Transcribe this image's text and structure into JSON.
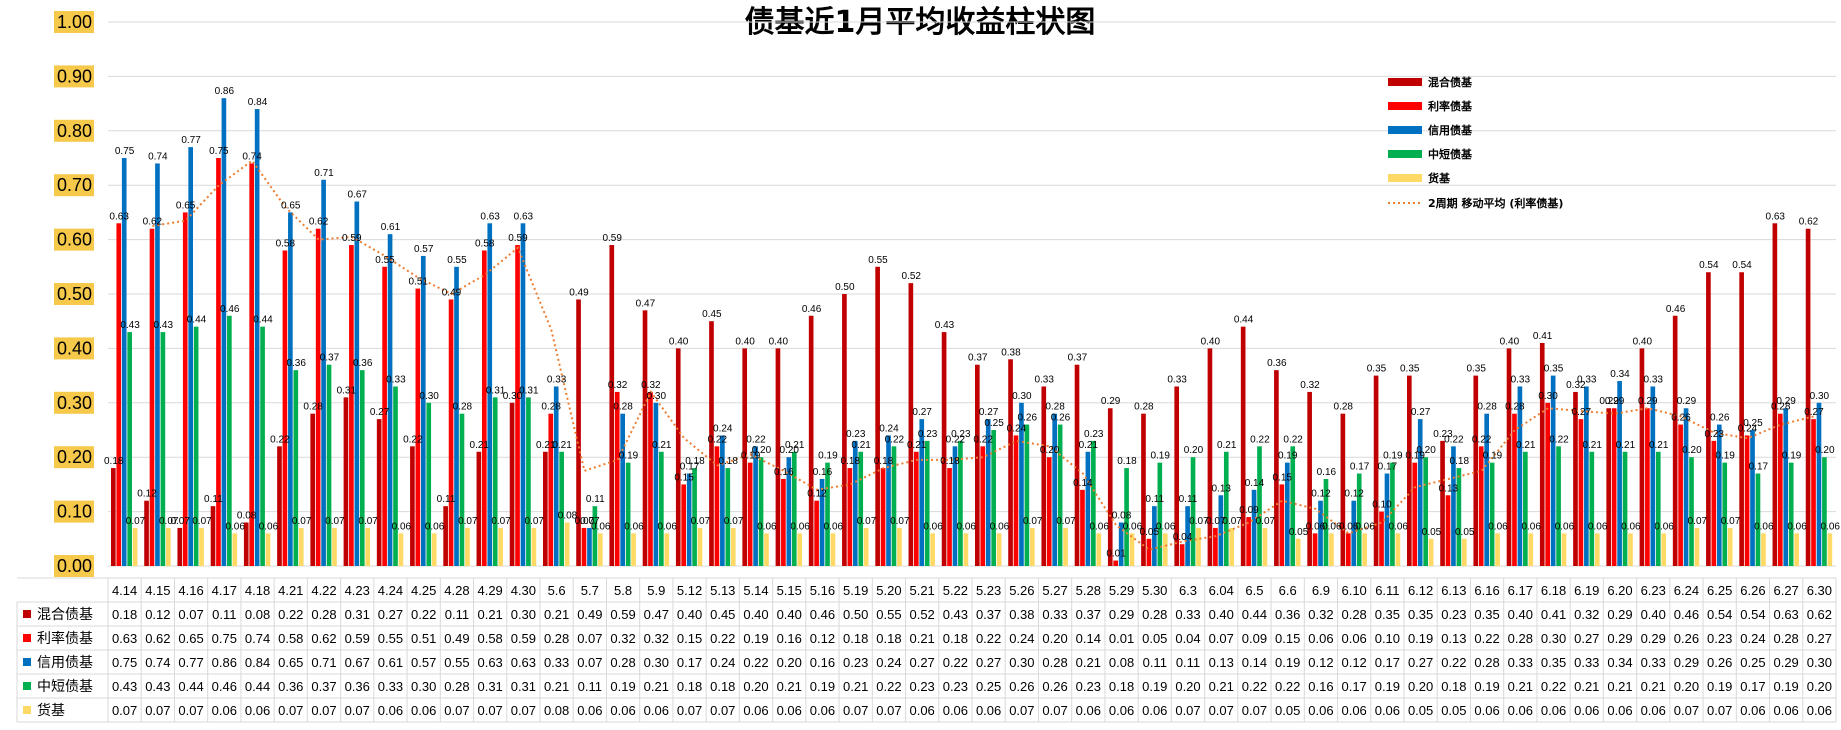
{
  "chart_data": {
    "type": "bar",
    "title": "债基近1月平均收益柱状图",
    "ylim": [
      0,
      1.0
    ],
    "yticks": [
      "0.00",
      "0.10",
      "0.20",
      "0.30",
      "0.40",
      "0.50",
      "0.60",
      "0.70",
      "0.80",
      "0.90",
      "1.00"
    ],
    "grid": true,
    "legend_position": "top-right",
    "categories": [
      "4.14",
      "4.15",
      "4.16",
      "4.17",
      "4.18",
      "4.21",
      "4.22",
      "4.23",
      "4.24",
      "4.25",
      "4.28",
      "4.29",
      "4.30",
      "5.6",
      "5.7",
      "5.8",
      "5.9",
      "5.12",
      "5.13",
      "5.14",
      "5.15",
      "5.16",
      "5.19",
      "5.20",
      "5.21",
      "5.22",
      "5.23",
      "5.26",
      "5.27",
      "5.28",
      "5.29",
      "5.30",
      "6.3",
      "6.04",
      "6.5",
      "6.6",
      "6.9",
      "6.10",
      "6.11",
      "6.12",
      "6.13",
      "6.16",
      "6.17",
      "6.18",
      "6.19",
      "6.20",
      "6.23",
      "6.24",
      "6.25",
      "6.26",
      "6.27",
      "6.30"
    ],
    "series": [
      {
        "name": "混合债基",
        "color": "#c00000",
        "values": [
          0.18,
          0.12,
          0.07,
          0.11,
          0.08,
          0.22,
          0.28,
          0.31,
          0.27,
          0.22,
          0.11,
          0.21,
          0.3,
          0.21,
          0.49,
          0.59,
          0.47,
          0.4,
          0.45,
          0.4,
          0.4,
          0.46,
          0.5,
          0.55,
          0.52,
          0.43,
          0.37,
          0.38,
          0.33,
          0.37,
          0.29,
          0.28,
          0.33,
          0.4,
          0.44,
          0.36,
          0.32,
          0.28,
          0.35,
          0.35,
          0.23,
          0.35,
          0.4,
          0.41,
          0.32,
          0.29,
          0.4,
          0.46,
          0.54,
          0.54,
          0.63,
          0.62
        ]
      },
      {
        "name": "利率债基",
        "color": "#ff0000",
        "values": [
          0.63,
          0.62,
          0.65,
          0.75,
          0.74,
          0.58,
          0.62,
          0.59,
          0.55,
          0.51,
          0.49,
          0.58,
          0.59,
          0.28,
          0.07,
          0.32,
          0.32,
          0.15,
          0.22,
          0.19,
          0.16,
          0.12,
          0.18,
          0.18,
          0.21,
          0.18,
          0.22,
          0.24,
          0.2,
          0.14,
          0.01,
          0.05,
          0.04,
          0.07,
          0.09,
          0.15,
          0.06,
          0.06,
          0.1,
          0.19,
          0.13,
          0.22,
          0.28,
          0.3,
          0.27,
          0.29,
          0.29,
          0.26,
          0.23,
          0.24,
          0.28,
          0.27
        ]
      },
      {
        "name": "信用债基",
        "color": "#0070c0",
        "values": [
          0.75,
          0.74,
          0.77,
          0.86,
          0.84,
          0.65,
          0.71,
          0.67,
          0.61,
          0.57,
          0.55,
          0.63,
          0.63,
          0.33,
          0.07,
          0.28,
          0.3,
          0.17,
          0.24,
          0.22,
          0.2,
          0.16,
          0.23,
          0.24,
          0.27,
          0.22,
          0.27,
          0.3,
          0.28,
          0.21,
          0.08,
          0.11,
          0.11,
          0.13,
          0.14,
          0.19,
          0.12,
          0.12,
          0.17,
          0.27,
          0.22,
          0.28,
          0.33,
          0.35,
          0.33,
          0.34,
          0.33,
          0.29,
          0.26,
          0.25,
          0.29,
          0.3
        ]
      },
      {
        "name": "中短债基",
        "color": "#00b050",
        "values": [
          0.43,
          0.43,
          0.44,
          0.46,
          0.44,
          0.36,
          0.37,
          0.36,
          0.33,
          0.3,
          0.28,
          0.31,
          0.31,
          0.21,
          0.11,
          0.19,
          0.21,
          0.18,
          0.18,
          0.2,
          0.21,
          0.19,
          0.21,
          0.22,
          0.23,
          0.23,
          0.25,
          0.26,
          0.26,
          0.23,
          0.18,
          0.19,
          0.2,
          0.21,
          0.22,
          0.22,
          0.16,
          0.17,
          0.19,
          0.2,
          0.18,
          0.19,
          0.21,
          0.22,
          0.21,
          0.21,
          0.21,
          0.2,
          0.19,
          0.17,
          0.19,
          0.2
        ]
      },
      {
        "name": "货基",
        "color": "#ffd966",
        "values": [
          0.07,
          0.07,
          0.07,
          0.06,
          0.06,
          0.07,
          0.07,
          0.07,
          0.06,
          0.06,
          0.07,
          0.07,
          0.07,
          0.08,
          0.06,
          0.06,
          0.06,
          0.07,
          0.07,
          0.06,
          0.06,
          0.06,
          0.07,
          0.07,
          0.06,
          0.06,
          0.06,
          0.07,
          0.07,
          0.06,
          0.06,
          0.06,
          0.07,
          0.07,
          0.07,
          0.05,
          0.06,
          0.06,
          0.06,
          0.05,
          0.05,
          0.06,
          0.06,
          0.06,
          0.06,
          0.06,
          0.06,
          0.07,
          0.07,
          0.06,
          0.06,
          0.06
        ]
      }
    ],
    "trendline": {
      "name": "2周期 移动平均 (利率债基)",
      "series": "利率债基",
      "color": "#ed7d31",
      "period": 2
    }
  }
}
